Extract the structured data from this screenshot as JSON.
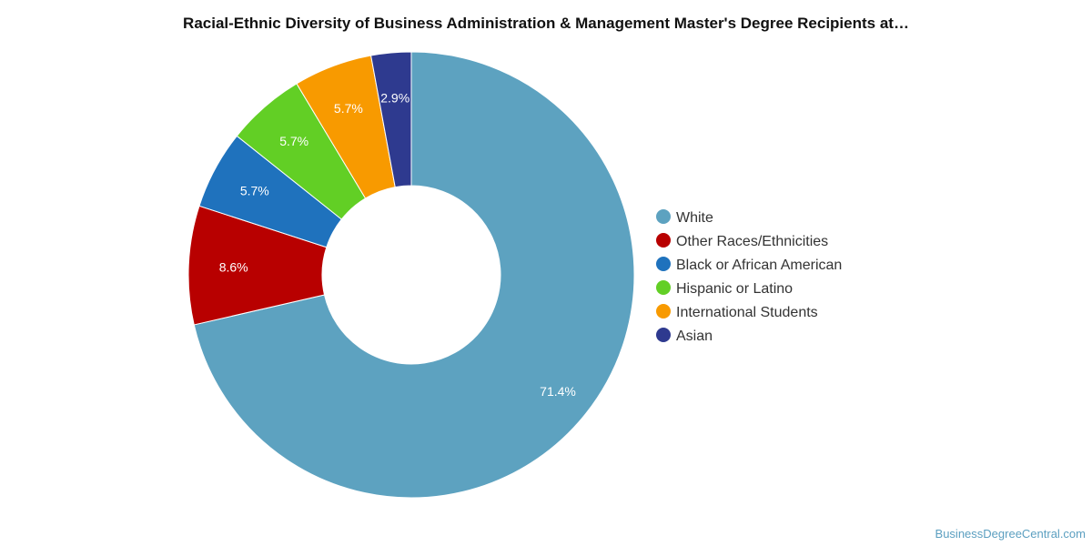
{
  "title": "Racial-Ethnic Diversity of Business Administration & Management Master's Degree Recipients at…",
  "watermark": "BusinessDegreeCentral.com",
  "chart_data": {
    "type": "pie",
    "donut": true,
    "legend_placement": "right",
    "start": "top, clockwise",
    "series": [
      {
        "name": "White",
        "value": 71.4,
        "label": "71.4%",
        "color": "#5da2c0"
      },
      {
        "name": "Other Races/Ethnicities",
        "value": 8.6,
        "label": "8.6%",
        "color": "#b80000"
      },
      {
        "name": "Black or African American",
        "value": 5.7,
        "label": "5.7%",
        "color": "#1f72bd"
      },
      {
        "name": "Hispanic or Latino",
        "value": 5.7,
        "label": "5.7%",
        "color": "#62cf25"
      },
      {
        "name": "International Students",
        "value": 5.7,
        "label": "5.7%",
        "color": "#f89a00"
      },
      {
        "name": "Asian",
        "value": 2.9,
        "label": "2.9%",
        "color": "#2e3a8f"
      }
    ]
  }
}
